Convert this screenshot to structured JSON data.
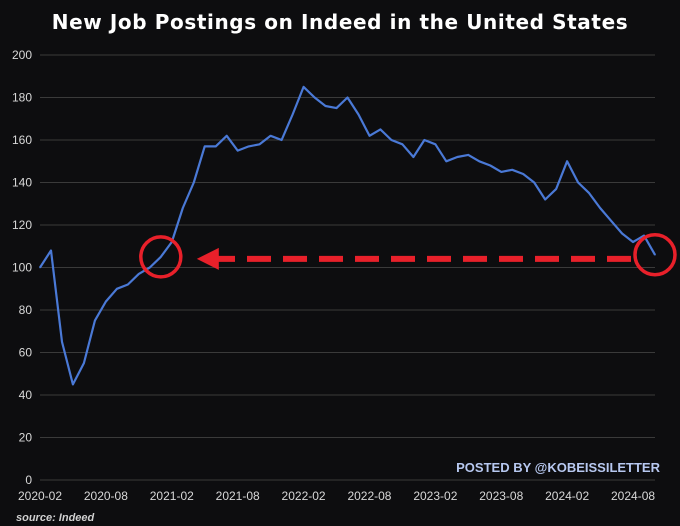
{
  "colors": {
    "background": "#0d0d0f",
    "line": "#4a79d6",
    "grid": "#3a3a3a",
    "annotation": "#e8202a",
    "watermark": "#b7c8f0"
  },
  "watermark": "POSTED BY @KOBEISSILETTER",
  "source": "source: Indeed",
  "chart_data": {
    "type": "line",
    "title": "New Job Postings on Indeed in the United States",
    "xlabel": "",
    "ylabel": "",
    "ylim": [
      0,
      200
    ],
    "grid": "horizontal",
    "x_ticks": [
      "2020-02",
      "2020-08",
      "2021-02",
      "2021-08",
      "2022-02",
      "2022-08",
      "2023-02",
      "2023-08",
      "2024-02",
      "2024-08"
    ],
    "y_ticks": [
      0,
      20,
      40,
      60,
      80,
      100,
      120,
      140,
      160,
      180,
      200
    ],
    "series": [
      {
        "values": [
          [
            "2020-02",
            100
          ],
          [
            "2020-03",
            108
          ],
          [
            "2020-04",
            65
          ],
          [
            "2020-05",
            45
          ],
          [
            "2020-06",
            55
          ],
          [
            "2020-07",
            75
          ],
          [
            "2020-08",
            84
          ],
          [
            "2020-09",
            90
          ],
          [
            "2020-10",
            92
          ],
          [
            "2020-11",
            97
          ],
          [
            "2020-12",
            100
          ],
          [
            "2021-01",
            105
          ],
          [
            "2021-02",
            112
          ],
          [
            "2021-03",
            128
          ],
          [
            "2021-04",
            140
          ],
          [
            "2021-05",
            157
          ],
          [
            "2021-06",
            157
          ],
          [
            "2021-07",
            162
          ],
          [
            "2021-08",
            155
          ],
          [
            "2021-09",
            157
          ],
          [
            "2021-10",
            158
          ],
          [
            "2021-11",
            162
          ],
          [
            "2021-12",
            160
          ],
          [
            "2022-01",
            172
          ],
          [
            "2022-02",
            185
          ],
          [
            "2022-03",
            180
          ],
          [
            "2022-04",
            176
          ],
          [
            "2022-05",
            175
          ],
          [
            "2022-06",
            180
          ],
          [
            "2022-07",
            172
          ],
          [
            "2022-08",
            162
          ],
          [
            "2022-09",
            165
          ],
          [
            "2022-10",
            160
          ],
          [
            "2022-11",
            158
          ],
          [
            "2022-12",
            152
          ],
          [
            "2023-01",
            160
          ],
          [
            "2023-02",
            158
          ],
          [
            "2023-03",
            150
          ],
          [
            "2023-04",
            152
          ],
          [
            "2023-05",
            153
          ],
          [
            "2023-06",
            150
          ],
          [
            "2023-07",
            148
          ],
          [
            "2023-08",
            145
          ],
          [
            "2023-09",
            146
          ],
          [
            "2023-10",
            144
          ],
          [
            "2023-11",
            140
          ],
          [
            "2023-12",
            132
          ],
          [
            "2024-01",
            137
          ],
          [
            "2024-02",
            150
          ],
          [
            "2024-03",
            140
          ],
          [
            "2024-04",
            135
          ],
          [
            "2024-05",
            128
          ],
          [
            "2024-06",
            122
          ],
          [
            "2024-07",
            116
          ],
          [
            "2024-08",
            112
          ],
          [
            "2024-09",
            115
          ],
          [
            "2024-10",
            106
          ]
        ]
      }
    ],
    "annotations": [
      {
        "type": "circle",
        "at": "2021-01",
        "value": 105
      },
      {
        "type": "circle",
        "at": "2024-10",
        "value": 106
      },
      {
        "type": "dashed-arrow",
        "from": "2024-10",
        "to": "2021-01",
        "value": 105
      }
    ]
  }
}
